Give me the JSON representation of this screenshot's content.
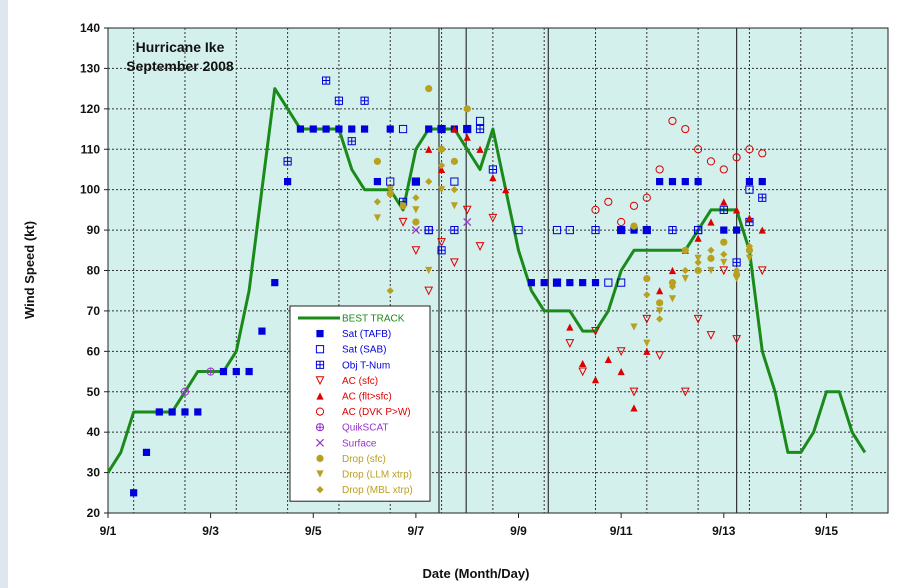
{
  "colors": {
    "plot_bg": "#d3f0ec",
    "best_track": "#1a8a1a",
    "sat_blue": "#0000dd",
    "ac_red": "#dd0000",
    "surface_purple": "#9933cc",
    "drop_gold": "#b8a020",
    "text": "#111111"
  },
  "chart_data": {
    "type": "scatter",
    "title": "Hurricane Ike",
    "subtitle": "September 2008",
    "xlabel": "Date (Month/Day)",
    "ylabel": "Wind Speed (kt)",
    "xlim": [
      1.0,
      16.2
    ],
    "ylim": [
      20,
      140
    ],
    "x_ticks": [
      {
        "x": 1.0,
        "label": "9/1"
      },
      {
        "x": 3.0,
        "label": "9/3"
      },
      {
        "x": 5.0,
        "label": "9/5"
      },
      {
        "x": 7.0,
        "label": "9/7"
      },
      {
        "x": 9.0,
        "label": "9/9"
      },
      {
        "x": 11.0,
        "label": "9/11"
      },
      {
        "x": 13.0,
        "label": "9/13"
      },
      {
        "x": 15.0,
        "label": "9/15"
      }
    ],
    "y_ticks": [
      20,
      30,
      40,
      50,
      60,
      70,
      80,
      90,
      100,
      110,
      120,
      130,
      140
    ],
    "grid": true,
    "vertical_event_lines": [
      7.45,
      7.98,
      9.58,
      13.25
    ],
    "legend_position": "lower-left",
    "series": [
      {
        "name": "BEST TRACK",
        "marker": "line",
        "color": "#1a8a1a",
        "points": [
          [
            1.0,
            30
          ],
          [
            1.25,
            35
          ],
          [
            1.5,
            45
          ],
          [
            1.75,
            45
          ],
          [
            2.0,
            45
          ],
          [
            2.25,
            45
          ],
          [
            2.5,
            50
          ],
          [
            2.75,
            55
          ],
          [
            3.0,
            55
          ],
          [
            3.25,
            55
          ],
          [
            3.5,
            60
          ],
          [
            3.75,
            75
          ],
          [
            4.0,
            100
          ],
          [
            4.25,
            125
          ],
          [
            4.5,
            120
          ],
          [
            4.75,
            115
          ],
          [
            5.0,
            115
          ],
          [
            5.25,
            115
          ],
          [
            5.5,
            115
          ],
          [
            5.75,
            105
          ],
          [
            6.0,
            100
          ],
          [
            6.25,
            100
          ],
          [
            6.5,
            100
          ],
          [
            6.75,
            95
          ],
          [
            7.0,
            110
          ],
          [
            7.25,
            115
          ],
          [
            7.5,
            115
          ],
          [
            7.75,
            115
          ],
          [
            8.0,
            110
          ],
          [
            8.25,
            105
          ],
          [
            8.5,
            115
          ],
          [
            8.75,
            100
          ],
          [
            9.0,
            85
          ],
          [
            9.25,
            75
          ],
          [
            9.5,
            70
          ],
          [
            9.75,
            70
          ],
          [
            10.0,
            70
          ],
          [
            10.25,
            65
          ],
          [
            10.5,
            65
          ],
          [
            10.75,
            70
          ],
          [
            11.0,
            80
          ],
          [
            11.25,
            85
          ],
          [
            11.5,
            85
          ],
          [
            11.75,
            85
          ],
          [
            12.0,
            85
          ],
          [
            12.25,
            85
          ],
          [
            12.5,
            90
          ],
          [
            12.75,
            95
          ],
          [
            13.0,
            95
          ],
          [
            13.25,
            95
          ],
          [
            13.5,
            85
          ],
          [
            13.75,
            60
          ],
          [
            14.0,
            50
          ],
          [
            14.25,
            35
          ],
          [
            14.5,
            35
          ],
          [
            14.75,
            40
          ],
          [
            15.0,
            50
          ],
          [
            15.25,
            50
          ],
          [
            15.5,
            40
          ],
          [
            15.75,
            35
          ]
        ]
      },
      {
        "name": "Sat (TAFB)",
        "marker": "square-filled",
        "color": "#0000dd",
        "points": [
          [
            1.5,
            25
          ],
          [
            1.75,
            35
          ],
          [
            2.0,
            45
          ],
          [
            2.25,
            45
          ],
          [
            2.5,
            45
          ],
          [
            2.75,
            45
          ],
          [
            3.25,
            55
          ],
          [
            3.5,
            55
          ],
          [
            3.75,
            55
          ],
          [
            4.0,
            65
          ],
          [
            4.25,
            77
          ],
          [
            4.5,
            102
          ],
          [
            4.75,
            115
          ],
          [
            5.0,
            115
          ],
          [
            5.25,
            115
          ],
          [
            5.5,
            115
          ],
          [
            5.75,
            115
          ],
          [
            6.0,
            115
          ],
          [
            6.25,
            102
          ],
          [
            6.5,
            115
          ],
          [
            7.0,
            102
          ],
          [
            7.25,
            115
          ],
          [
            7.5,
            115
          ],
          [
            7.75,
            115
          ],
          [
            8.0,
            115
          ],
          [
            9.25,
            77
          ],
          [
            9.5,
            77
          ],
          [
            9.75,
            77
          ],
          [
            10.0,
            77
          ],
          [
            10.25,
            77
          ],
          [
            10.5,
            77
          ],
          [
            11.0,
            90
          ],
          [
            11.25,
            90
          ],
          [
            11.5,
            90
          ],
          [
            11.75,
            102
          ],
          [
            12.0,
            102
          ],
          [
            12.25,
            102
          ],
          [
            12.5,
            102
          ],
          [
            13.0,
            90
          ],
          [
            13.25,
            90
          ],
          [
            13.5,
            102
          ],
          [
            13.75,
            102
          ]
        ]
      },
      {
        "name": "Sat (SAB)",
        "marker": "square-open",
        "color": "#0000dd",
        "points": [
          [
            6.5,
            102
          ],
          [
            6.75,
            115
          ],
          [
            7.0,
            102
          ],
          [
            7.25,
            90
          ],
          [
            7.5,
            115
          ],
          [
            7.75,
            102
          ],
          [
            8.0,
            115
          ],
          [
            8.25,
            117
          ],
          [
            9.0,
            90
          ],
          [
            9.75,
            90
          ],
          [
            10.0,
            90
          ],
          [
            10.75,
            77
          ],
          [
            11.0,
            77
          ],
          [
            11.5,
            90
          ],
          [
            12.5,
            90
          ],
          [
            13.5,
            100
          ]
        ]
      },
      {
        "name": "Obj T-Num",
        "marker": "square-grid",
        "color": "#0000dd",
        "points": [
          [
            4.5,
            107
          ],
          [
            5.25,
            127
          ],
          [
            5.5,
            122
          ],
          [
            5.75,
            112
          ],
          [
            6.0,
            122
          ],
          [
            6.75,
            97
          ],
          [
            7.25,
            90
          ],
          [
            7.5,
            85
          ],
          [
            7.75,
            90
          ],
          [
            8.25,
            115
          ],
          [
            8.5,
            105
          ],
          [
            9.75,
            77
          ],
          [
            10.5,
            90
          ],
          [
            11.0,
            90
          ],
          [
            12.0,
            90
          ],
          [
            12.5,
            90
          ],
          [
            13.0,
            95
          ],
          [
            13.25,
            82
          ],
          [
            13.5,
            92
          ],
          [
            13.75,
            98
          ]
        ]
      },
      {
        "name": "AC (sfc)",
        "marker": "triangle-down-open",
        "color": "#dd0000",
        "points": [
          [
            6.75,
            92
          ],
          [
            7.0,
            85
          ],
          [
            7.25,
            75
          ],
          [
            7.5,
            87
          ],
          [
            7.75,
            82
          ],
          [
            8.0,
            95
          ],
          [
            8.25,
            86
          ],
          [
            8.5,
            93
          ],
          [
            10.0,
            62
          ],
          [
            10.25,
            55
          ],
          [
            10.5,
            65
          ],
          [
            11.0,
            60
          ],
          [
            11.25,
            50
          ],
          [
            11.5,
            68
          ],
          [
            11.75,
            59
          ],
          [
            12.25,
            50
          ],
          [
            12.5,
            68
          ],
          [
            12.75,
            64
          ],
          [
            13.0,
            80
          ],
          [
            13.25,
            63
          ],
          [
            13.75,
            80
          ]
        ]
      },
      {
        "name": "AC (flt>sfc)",
        "marker": "triangle-up-filled",
        "color": "#dd0000",
        "points": [
          [
            7.25,
            110
          ],
          [
            7.5,
            105
          ],
          [
            7.75,
            115
          ],
          [
            8.0,
            113
          ],
          [
            8.25,
            110
          ],
          [
            8.5,
            103
          ],
          [
            8.75,
            100
          ],
          [
            10.0,
            66
          ],
          [
            10.25,
            57
          ],
          [
            10.5,
            53
          ],
          [
            10.75,
            58
          ],
          [
            11.0,
            55
          ],
          [
            11.25,
            46
          ],
          [
            11.5,
            60
          ],
          [
            11.75,
            75
          ],
          [
            12.0,
            80
          ],
          [
            12.25,
            85
          ],
          [
            12.5,
            88
          ],
          [
            12.75,
            92
          ],
          [
            13.0,
            97
          ],
          [
            13.25,
            95
          ],
          [
            13.5,
            93
          ],
          [
            13.75,
            90
          ]
        ]
      },
      {
        "name": "AC (DVK P>W)",
        "marker": "circle-open",
        "color": "#dd0000",
        "points": [
          [
            10.5,
            95
          ],
          [
            10.75,
            97
          ],
          [
            11.0,
            92
          ],
          [
            11.25,
            96
          ],
          [
            11.5,
            98
          ],
          [
            11.75,
            105
          ],
          [
            12.0,
            117
          ],
          [
            12.25,
            115
          ],
          [
            12.5,
            110
          ],
          [
            12.75,
            107
          ],
          [
            13.0,
            105
          ],
          [
            13.25,
            108
          ],
          [
            13.5,
            110
          ],
          [
            13.75,
            109
          ]
        ]
      },
      {
        "name": "QuikSCAT",
        "marker": "plus-circle",
        "color": "#9933cc",
        "points": [
          [
            2.5,
            50
          ],
          [
            3.0,
            55
          ]
        ]
      },
      {
        "name": "Surface",
        "marker": "x",
        "color": "#9933cc",
        "points": [
          [
            7.0,
            90
          ],
          [
            8.0,
            92
          ]
        ]
      },
      {
        "name": "Drop (sfc)",
        "marker": "circle-filled",
        "color": "#b8a020",
        "points": [
          [
            6.25,
            107
          ],
          [
            6.5,
            99
          ],
          [
            6.75,
            96
          ],
          [
            7.0,
            92
          ],
          [
            7.25,
            125
          ],
          [
            7.5,
            110
          ],
          [
            7.75,
            107
          ],
          [
            8.0,
            120
          ],
          [
            11.25,
            91
          ],
          [
            11.5,
            78
          ],
          [
            11.75,
            72
          ],
          [
            12.0,
            77
          ],
          [
            12.25,
            85
          ],
          [
            12.5,
            80
          ],
          [
            12.75,
            83
          ],
          [
            13.0,
            87
          ],
          [
            13.25,
            79
          ],
          [
            13.5,
            85
          ]
        ]
      },
      {
        "name": "Drop (LLM xtrp)",
        "marker": "triangle-down-filled",
        "color": "#b8a020",
        "points": [
          [
            6.25,
            93
          ],
          [
            6.5,
            100
          ],
          [
            7.0,
            95
          ],
          [
            7.25,
            80
          ],
          [
            7.5,
            100
          ],
          [
            7.75,
            96
          ],
          [
            11.25,
            66
          ],
          [
            11.5,
            62
          ],
          [
            11.75,
            70
          ],
          [
            12.0,
            73
          ],
          [
            12.25,
            78
          ],
          [
            12.5,
            83
          ],
          [
            12.75,
            80
          ],
          [
            13.0,
            82
          ],
          [
            13.25,
            78
          ],
          [
            13.5,
            83
          ]
        ]
      },
      {
        "name": "Drop (MBL xtrp)",
        "marker": "diamond-filled",
        "color": "#b8a020",
        "points": [
          [
            6.25,
            97
          ],
          [
            6.5,
            75
          ],
          [
            7.0,
            98
          ],
          [
            7.25,
            102
          ],
          [
            7.5,
            106
          ],
          [
            7.75,
            100
          ],
          [
            11.5,
            74
          ],
          [
            11.75,
            68
          ],
          [
            12.0,
            76
          ],
          [
            12.25,
            80
          ],
          [
            12.5,
            82
          ],
          [
            12.75,
            85
          ],
          [
            13.0,
            84
          ],
          [
            13.25,
            80
          ],
          [
            13.5,
            86
          ]
        ]
      }
    ]
  }
}
